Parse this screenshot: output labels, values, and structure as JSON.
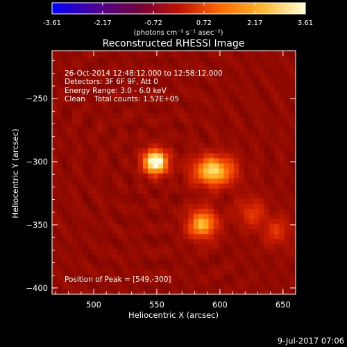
{
  "chart_data": {
    "type": "heatmap",
    "title": "Reconstructed RHESSI Image",
    "xlabel": "Heliocentric X (arcsec)",
    "ylabel": "Heliocentric Y (arcsec)",
    "xlim": [
      467,
      660
    ],
    "ylim": [
      -405,
      -212
    ],
    "xticks": [
      "500",
      "550",
      "600",
      "650"
    ],
    "yticks": [
      "-250",
      "-300",
      "-350",
      "-400"
    ],
    "colorbar": {
      "ticks": [
        "-3.61",
        "-2.17",
        "-0.72",
        "0.72",
        "2.17",
        "3.61"
      ],
      "range": [
        -3.61,
        3.61
      ],
      "unit_label": "(photons cm⁻² s⁻¹ asec⁻²)",
      "colors": [
        "#0000ff",
        "#4b009a",
        "#700040",
        "#c01000",
        "#ff6a00",
        "#ffb830",
        "#ffffd8"
      ]
    },
    "annotations": {
      "time_range": "26-Oct-2014 12:48:12.000 to 12:58:12.000",
      "detectors": "Detectors: 3F 6F 9F, Att 0",
      "energy": "Energy Range: 3.0 - 6.0 keV",
      "clean": "Clean    Total counts: 1.57E+05",
      "peak": "Position of Peak = [549,-300]"
    },
    "sources": [
      {
        "x": 549,
        "y": -300,
        "intensity": 3.61,
        "label": "peak"
      },
      {
        "x": 595,
        "y": -307,
        "intensity": 2.6
      },
      {
        "x": 586,
        "y": -349,
        "intensity": 2.2
      },
      {
        "x": 625,
        "y": -340,
        "intensity": 0.9
      },
      {
        "x": 645,
        "y": -355,
        "intensity": 0.8
      }
    ],
    "background_level": 0.6,
    "grid": false
  },
  "footer": {
    "date": "9-Jul-2017 07:06"
  }
}
